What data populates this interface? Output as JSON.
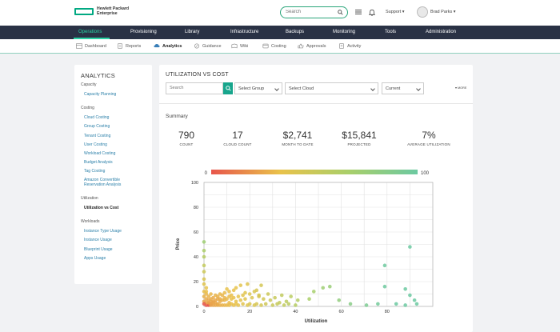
{
  "brand": {
    "line1": "Hewlett Packard",
    "line2": "Enterprise"
  },
  "header": {
    "search_placeholder": "Search",
    "support_label": "Support ▾",
    "user_name": "Brad Parks ▾"
  },
  "nav": [
    {
      "label": "Operations",
      "active": true
    },
    {
      "label": "Provisioning"
    },
    {
      "label": "Library"
    },
    {
      "label": "Infrastructure"
    },
    {
      "label": "Backups"
    },
    {
      "label": "Monitoring"
    },
    {
      "label": "Tools"
    },
    {
      "label": "Administration"
    }
  ],
  "subnav": [
    {
      "label": "Dashboard",
      "icon": "dashboard-icon"
    },
    {
      "label": "Reports",
      "icon": "reports-icon"
    },
    {
      "label": "Analytics",
      "icon": "analytics-icon",
      "active": true
    },
    {
      "label": "Guidance",
      "icon": "guidance-icon"
    },
    {
      "label": "Wiki",
      "icon": "wiki-icon"
    },
    {
      "label": "Costing",
      "icon": "costing-icon"
    },
    {
      "label": "Approvals",
      "icon": "approvals-icon"
    },
    {
      "label": "Activity",
      "icon": "activity-icon"
    }
  ],
  "sidebar": {
    "title": "ANALYTICS",
    "sections": [
      {
        "label": "Capacity",
        "items": [
          "Capacity Planning"
        ]
      },
      {
        "label": "Costing",
        "items": [
          "Cloud Costing",
          "Group Costing",
          "Tenant Costing",
          "User Costing",
          "Workload Costing",
          "Budget Analysis",
          "Tag Costing",
          "Amazon Convertible Reservation Analysis"
        ]
      },
      {
        "label": "Utilization",
        "items": [
          "Utilization vs Cost"
        ]
      },
      {
        "label": "Workloads",
        "items": [
          "Instance Type Usage",
          "Instance Usage",
          "Blueprint Usage",
          "Apps Usage"
        ]
      }
    ],
    "current": "Utilization vs Cost"
  },
  "main": {
    "title": "UTILIZATION VS COST",
    "filters": {
      "search_placeholder": "Search",
      "group": "Select Group",
      "cloud": "Select Cloud",
      "period": "Current",
      "more": "▾ MORE"
    },
    "summary_title": "Summary",
    "stats": [
      {
        "value": "790",
        "label": "COUNT"
      },
      {
        "value": "17",
        "label": "CLOUD COUNT"
      },
      {
        "value": "$2,741",
        "label": "MONTH TO DATE"
      },
      {
        "value": "$15,841",
        "label": "PROJECTED"
      },
      {
        "value": "7%",
        "label": "AVERAGE UTILIZATION"
      }
    ]
  },
  "colors": {
    "accent": "#01a982",
    "nav_bg": "#2a3245",
    "nav_active": "#2ad2a3",
    "link": "#2a7fa8"
  },
  "chart_data": {
    "type": "scatter",
    "xlabel": "Utilization",
    "ylabel": "Price",
    "xlim": [
      0,
      100
    ],
    "ylim": [
      0,
      100
    ],
    "xticks": [
      0,
      20,
      40,
      60,
      80
    ],
    "yticks": [
      0,
      20,
      40,
      60,
      80,
      100
    ],
    "grid": true,
    "colorscale": {
      "min": 0,
      "max": 100,
      "colors": [
        "#e8564b",
        "#e9c24a",
        "#a9cf6a",
        "#6cc9a1"
      ]
    },
    "points": [
      [
        90,
        48
      ],
      [
        79,
        33
      ],
      [
        25,
        17
      ],
      [
        23,
        13
      ],
      [
        19,
        18
      ],
      [
        16,
        17
      ],
      [
        14,
        15
      ],
      [
        13,
        13
      ],
      [
        11,
        12
      ],
      [
        10,
        14
      ],
      [
        9,
        11
      ],
      [
        8,
        9
      ],
      [
        7,
        10
      ],
      [
        6,
        8
      ],
      [
        5,
        9
      ],
      [
        4,
        7
      ],
      [
        38,
        8
      ],
      [
        41,
        5
      ],
      [
        36,
        4
      ],
      [
        33,
        3
      ],
      [
        29,
        5
      ],
      [
        26,
        6
      ],
      [
        24,
        8
      ],
      [
        21,
        7
      ],
      [
        18,
        6
      ],
      [
        16,
        5
      ],
      [
        14,
        4
      ],
      [
        12,
        6
      ],
      [
        11,
        3
      ],
      [
        9,
        5
      ],
      [
        7,
        4
      ],
      [
        6,
        2
      ],
      [
        5,
        3
      ],
      [
        3,
        4
      ],
      [
        2,
        2
      ],
      [
        52,
        15
      ],
      [
        55,
        16
      ],
      [
        48,
        12
      ],
      [
        46,
        6
      ],
      [
        59,
        5
      ],
      [
        64,
        2
      ],
      [
        71,
        1
      ],
      [
        76,
        2
      ],
      [
        79,
        16
      ],
      [
        88,
        14
      ],
      [
        90,
        9
      ],
      [
        92,
        5
      ],
      [
        88,
        1
      ],
      [
        84,
        2
      ],
      [
        93,
        2
      ],
      [
        1,
        1
      ],
      [
        2,
        1
      ],
      [
        3,
        1
      ],
      [
        4,
        1
      ],
      [
        5,
        1
      ],
      [
        6,
        1
      ],
      [
        7,
        1
      ],
      [
        8,
        1
      ],
      [
        9,
        1
      ],
      [
        10,
        1
      ],
      [
        11,
        1
      ],
      [
        12,
        2
      ],
      [
        13,
        1
      ],
      [
        14,
        2
      ],
      [
        15,
        1
      ],
      [
        17,
        2
      ],
      [
        19,
        1
      ],
      [
        20,
        2
      ],
      [
        22,
        1
      ],
      [
        23,
        2
      ],
      [
        25,
        1
      ],
      [
        27,
        2
      ],
      [
        30,
        1
      ],
      [
        32,
        2
      ],
      [
        35,
        1
      ],
      [
        37,
        2
      ],
      [
        40,
        1
      ],
      [
        1,
        3
      ],
      [
        2,
        3
      ],
      [
        3,
        2
      ],
      [
        4,
        3
      ],
      [
        5,
        5
      ],
      [
        6,
        6
      ],
      [
        7,
        6
      ],
      [
        8,
        5
      ],
      [
        9,
        7
      ],
      [
        10,
        6
      ],
      [
        11,
        8
      ],
      [
        12,
        9
      ],
      [
        13,
        7
      ],
      [
        15,
        8
      ],
      [
        17,
        9
      ],
      [
        18,
        11
      ],
      [
        20,
        10
      ],
      [
        22,
        12
      ],
      [
        24,
        9
      ],
      [
        28,
        10
      ],
      [
        31,
        7
      ],
      [
        34,
        9
      ],
      [
        0,
        18
      ],
      [
        0,
        22
      ],
      [
        0,
        28
      ],
      [
        0,
        33
      ],
      [
        0,
        40
      ],
      [
        0,
        45
      ],
      [
        0,
        52
      ],
      [
        1,
        15
      ],
      [
        1,
        10
      ],
      [
        1,
        6
      ],
      [
        1,
        12
      ],
      [
        0,
        8
      ],
      [
        0,
        4
      ],
      [
        0,
        12
      ],
      [
        0,
        2
      ],
      [
        2,
        5
      ],
      [
        3,
        6
      ],
      [
        4,
        4
      ],
      [
        2,
        8
      ],
      [
        3,
        10
      ]
    ]
  }
}
